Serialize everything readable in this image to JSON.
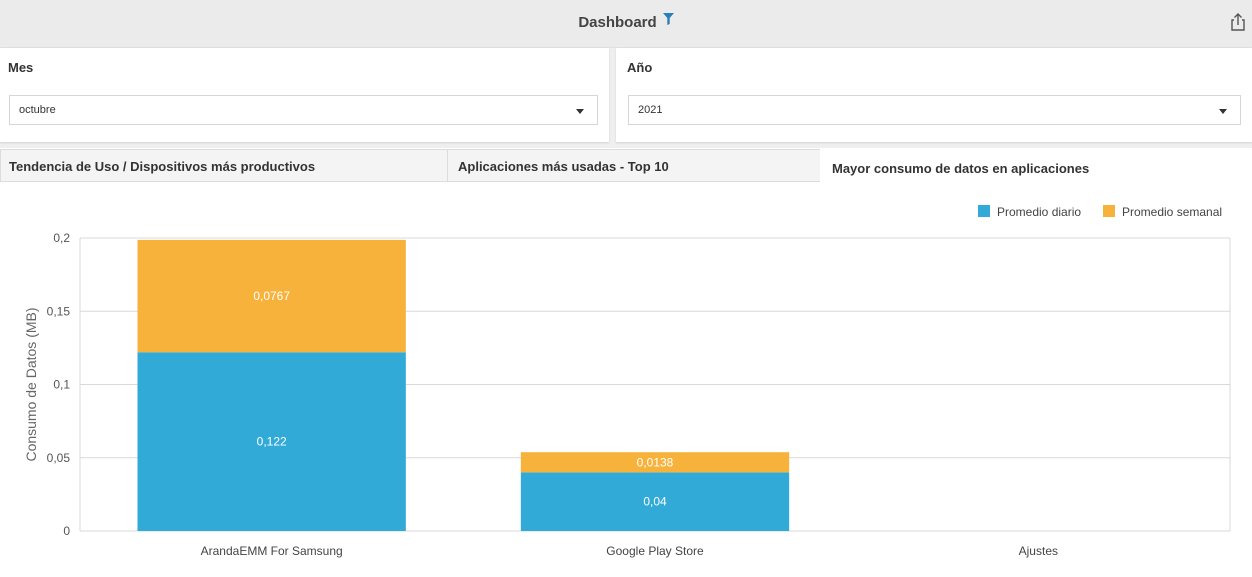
{
  "header": {
    "title": "Dashboard"
  },
  "filters": {
    "mes": {
      "label": "Mes",
      "value": "octubre"
    },
    "anio": {
      "label": "Año",
      "value": "2021"
    }
  },
  "tabs": [
    {
      "label": "Tendencia de Uso / Dispositivos más productivos"
    },
    {
      "label": "Aplicaciones más usadas - Top 10"
    },
    {
      "label": "Mayor consumo de datos en aplicaciones"
    }
  ],
  "colors": {
    "diario": "#31aad8",
    "semanal": "#f7b23b"
  },
  "chart_data": {
    "type": "bar",
    "stacked": true,
    "categories": [
      "ArandaEMM For Samsung",
      "Google Play Store",
      "Ajustes"
    ],
    "series": [
      {
        "name": "Promedio diario",
        "values": [
          0.122,
          0.04,
          0
        ],
        "labels": [
          "0,122",
          "0,04",
          ""
        ]
      },
      {
        "name": "Promedio semanal",
        "values": [
          0.0767,
          0.0138,
          0
        ],
        "labels": [
          "0,0767",
          "0,0138",
          ""
        ]
      }
    ],
    "ylabel": "Consumo de Datos (MB)",
    "ylim": [
      0,
      0.2
    ],
    "yticks": [
      0,
      0.05,
      0.1,
      0.15,
      0.2
    ],
    "ytick_labels": [
      "0",
      "0,05",
      "0,1",
      "0,15",
      "0,2"
    ],
    "grid": true,
    "legend": "top-right"
  }
}
